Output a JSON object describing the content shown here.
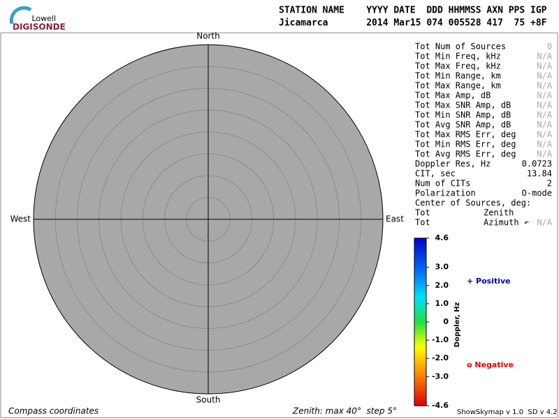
{
  "logo": {
    "top": "Lowell",
    "bottom": "DIGISONDE"
  },
  "header": {
    "labels": "STATION NAME    YYYY DATE  DDD HHMMSS AXN PPS IGP",
    "values": "Jicamarca       2014 Mar15 074 005528 417  75 +8F"
  },
  "compass": {
    "north": "North",
    "south": "South",
    "east": "East",
    "west": "West"
  },
  "stats": [
    {
      "label": "Tot Num of Sources",
      "value": "0",
      "color": "#aaaaaa"
    },
    {
      "label": "Tot Min Freq, kHz",
      "value": "N/A",
      "color": "#aaaaaa"
    },
    {
      "label": "Tot Max Freq, kHz",
      "value": "N/A",
      "color": "#aaaaaa"
    },
    {
      "label": "Tot Min Range, km",
      "value": "N/A",
      "color": "#aaaaaa"
    },
    {
      "label": "Tot Max Range, km",
      "value": "N/A",
      "color": "#aaaaaa"
    },
    {
      "label": "Tot Max Amp, dB",
      "value": "N/A",
      "color": "#aaaaaa"
    },
    {
      "label": "Tot Max SNR Amp, dB",
      "value": "N/A",
      "color": "#aaaaaa"
    },
    {
      "label": "Tot Min SNR Amp, dB",
      "value": "N/A",
      "color": "#aaaaaa"
    },
    {
      "label": "Tot Avg SNR Amp, dB",
      "value": "N/A",
      "color": "#aaaaaa"
    },
    {
      "label": "Tot Max RMS Err, deg",
      "value": "N/A",
      "color": "#aaaaaa"
    },
    {
      "label": "Tot Min RMS Err, deg",
      "value": "N/A",
      "color": "#aaaaaa"
    },
    {
      "label": "Tot Avg RMS Err, deg",
      "value": "N/A",
      "color": "#aaaaaa"
    },
    {
      "label": "Doppler Res, Hz",
      "value": "0.0723",
      "color": "#000000"
    },
    {
      "label": "CIT, sec",
      "value": "13.84",
      "color": "#000000"
    },
    {
      "label": "Num of CITs",
      "value": "2",
      "color": "#000000"
    },
    {
      "label": "Polarization",
      "value": "O-mode",
      "color": "#000000"
    },
    {
      "label": "Center of Sources, deg:"
    },
    {
      "label": "Tot",
      "sublabel": "Zenith"
    },
    {
      "label": "Tot",
      "sublabel": "Azimuth ↶",
      "value": "N/A",
      "color": "#aaaaaa"
    }
  ],
  "colorbar": {
    "title": "Doppler, Hz",
    "lim": [
      -4.6,
      4.6
    ],
    "ticks": [
      4.6,
      {
        "value": 3,
        "label": "3.0"
      },
      {
        "value": 2,
        "label": "2.0"
      },
      {
        "value": 1,
        "label": "1.0"
      },
      0,
      {
        "value": -1,
        "label": "-1.0"
      },
      {
        "value": -2,
        "label": "-2.0"
      },
      {
        "value": -3,
        "label": "-3.0"
      },
      -4.6
    ]
  },
  "legend": {
    "positive": "+ Positive",
    "negative": "o Negative"
  },
  "footer": {
    "left": "Compass coordinates",
    "middle": "Zenith: max 40°  step 5°",
    "right": "ShowSkymap v 1.0  SD v 4.2"
  }
}
